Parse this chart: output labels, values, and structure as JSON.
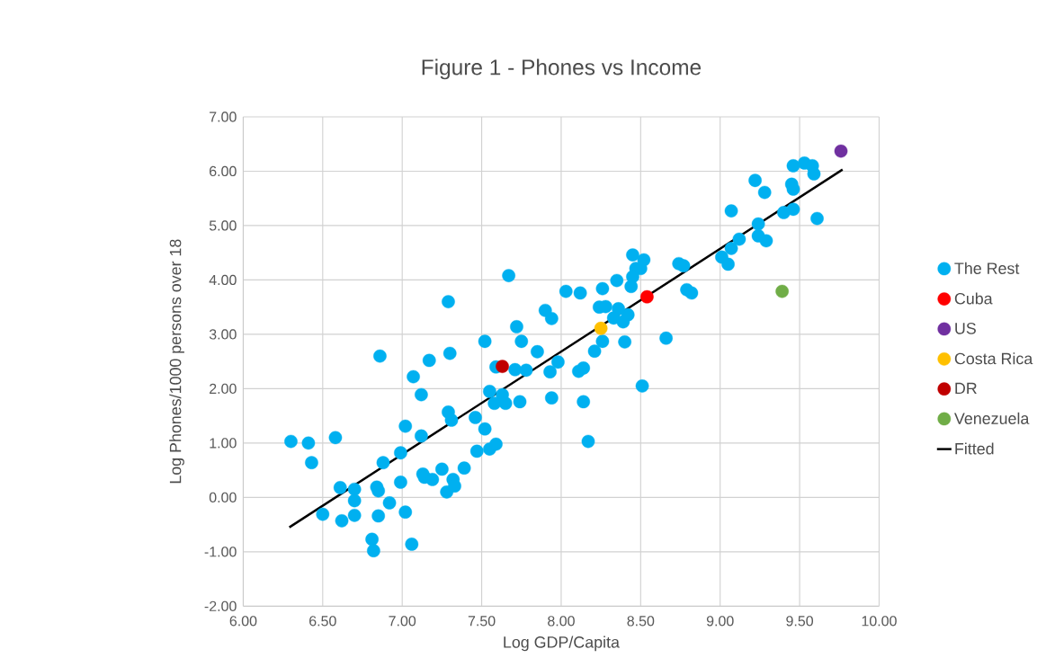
{
  "chart_data": {
    "type": "scatter",
    "title": "Figure 1 - Phones vs Income",
    "xlabel": "Log GDP/Capita",
    "ylabel": "Log Phones/1000 persons over 18",
    "xlim": [
      6,
      10
    ],
    "ylim": [
      -2,
      7
    ],
    "xticks": [
      {
        "value": 6,
        "label": "6.00"
      },
      {
        "value": 6.5,
        "label": "6.50"
      },
      {
        "value": 7,
        "label": "7.00"
      },
      {
        "value": 7.5,
        "label": "7.50"
      },
      {
        "value": 8,
        "label": "8.00"
      },
      {
        "value": 8.5,
        "label": "8.50"
      },
      {
        "value": 9,
        "label": "9.00"
      },
      {
        "value": 9.5,
        "label": "9.50"
      },
      {
        "value": 10,
        "label": "10.00"
      }
    ],
    "yticks": [
      {
        "value": -2,
        "label": "-2.00"
      },
      {
        "value": -1,
        "label": "-1.00"
      },
      {
        "value": 0,
        "label": "0.00"
      },
      {
        "value": 1,
        "label": "1.00"
      },
      {
        "value": 2,
        "label": "2.00"
      },
      {
        "value": 3,
        "label": "3.00"
      },
      {
        "value": 4,
        "label": "4.00"
      },
      {
        "value": 5,
        "label": "5.00"
      },
      {
        "value": 6,
        "label": "6.00"
      },
      {
        "value": 7,
        "label": "7.00"
      }
    ],
    "grid": true,
    "legend": "right",
    "marker": "circle",
    "series": [
      {
        "name": "The Rest",
        "color": "#00b0f0",
        "x": [
          6.3,
          6.41,
          6.43,
          6.58,
          6.61,
          6.5,
          6.62,
          6.7,
          6.7,
          6.7,
          6.81,
          6.82,
          6.84,
          6.85,
          6.85,
          6.88,
          6.92,
          6.86,
          6.99,
          6.99,
          7.02,
          7.02,
          7.06,
          7.07,
          7.12,
          7.12,
          7.13,
          7.14,
          7.19,
          7.17,
          7.25,
          7.28,
          7.29,
          7.31,
          7.29,
          7.3,
          7.32,
          7.33,
          7.39,
          7.46,
          7.47,
          7.52,
          7.52,
          7.55,
          7.55,
          7.59,
          7.58,
          7.67,
          7.59,
          7.71,
          7.78,
          7.72,
          7.75,
          7.85,
          7.9,
          7.94,
          7.98,
          7.93,
          8.11,
          8.14,
          7.63,
          7.65,
          7.74,
          7.94,
          8.14,
          8.17,
          8.03,
          8.12,
          8.26,
          8.35,
          8.24,
          8.28,
          8.36,
          8.33,
          8.42,
          8.39,
          8.26,
          8.21,
          8.4,
          8.51,
          8.66,
          8.45,
          8.52,
          8.47,
          8.5,
          8.45,
          8.44,
          8.74,
          8.77,
          8.79,
          8.82,
          9.01,
          9.05,
          9.07,
          9.12,
          9.07,
          9.24,
          9.24,
          9.29,
          9.22,
          9.28,
          9.4,
          9.46,
          9.61,
          9.45,
          9.46,
          9.46,
          9.53,
          9.58,
          9.59
        ],
        "values": [
          1.03,
          1.0,
          0.64,
          1.1,
          0.18,
          -0.31,
          -0.43,
          0.15,
          -0.06,
          -0.33,
          -0.77,
          -0.98,
          0.19,
          0.12,
          -0.34,
          0.64,
          -0.1,
          2.6,
          0.82,
          0.28,
          1.31,
          -0.27,
          -0.86,
          2.22,
          1.89,
          1.13,
          0.43,
          0.37,
          0.33,
          2.52,
          0.52,
          0.1,
          1.57,
          1.42,
          3.6,
          2.65,
          0.33,
          0.21,
          0.54,
          1.47,
          0.85,
          2.87,
          1.26,
          1.95,
          0.89,
          0.98,
          1.73,
          4.08,
          2.4,
          2.35,
          2.34,
          3.14,
          2.87,
          2.68,
          3.44,
          3.29,
          2.49,
          2.31,
          2.32,
          2.38,
          1.89,
          1.73,
          1.76,
          1.83,
          1.76,
          1.03,
          3.79,
          3.76,
          3.84,
          3.99,
          3.5,
          3.51,
          3.47,
          3.3,
          3.36,
          3.23,
          2.87,
          2.69,
          2.86,
          2.05,
          2.93,
          4.46,
          4.37,
          4.21,
          4.21,
          4.06,
          3.88,
          4.3,
          4.26,
          3.82,
          3.76,
          4.42,
          4.29,
          4.58,
          4.75,
          5.27,
          5.03,
          4.81,
          4.72,
          5.83,
          5.61,
          5.24,
          5.3,
          5.13,
          5.76,
          5.67,
          6.1,
          6.15,
          6.1,
          5.95
        ]
      },
      {
        "name": "Cuba",
        "color": "#ff0000",
        "x": [
          8.54
        ],
        "values": [
          3.69
        ]
      },
      {
        "name": "US",
        "color": "#7030a0",
        "x": [
          9.76
        ],
        "values": [
          6.37
        ]
      },
      {
        "name": "Costa Rica",
        "color": "#ffc000",
        "x": [
          8.25
        ],
        "values": [
          3.11
        ]
      },
      {
        "name": "DR",
        "color": "#c00000",
        "x": [
          7.63
        ],
        "values": [
          2.41
        ]
      },
      {
        "name": "Venezuela",
        "color": "#70ad47",
        "x": [
          9.39
        ],
        "values": [
          3.79
        ]
      },
      {
        "name": "Fitted",
        "type": "line",
        "marker": "none",
        "color": "#000000",
        "x": [
          6.29,
          9.77
        ],
        "values": [
          -0.55,
          6.03
        ]
      }
    ]
  }
}
